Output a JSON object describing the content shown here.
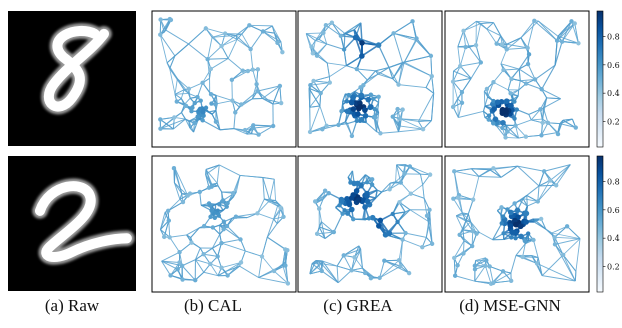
{
  "captions": [
    "(a) Raw",
    "(b) CAL",
    "(c) GREA",
    "(d) MSE-GNN"
  ],
  "colorbar": {
    "ticks": [
      "0.8",
      "0.6",
      "0.4",
      "0.2"
    ],
    "colormap": [
      "#f7fbff",
      "#deebf7",
      "#c6dbef",
      "#9ecae1",
      "#6baed6",
      "#4292c6",
      "#2171b5",
      "#08519c",
      "#08306b"
    ]
  },
  "rows": [
    {
      "digit": "8",
      "methods": [
        "CAL",
        "GREA",
        "MSE-GNN"
      ]
    },
    {
      "digit": "2",
      "methods": [
        "CAL",
        "GREA",
        "MSE-GNN"
      ]
    }
  ],
  "colors": {
    "edge": "#5b9bd5",
    "node_light": "#9ecae1",
    "node_dark": "#08306b"
  }
}
